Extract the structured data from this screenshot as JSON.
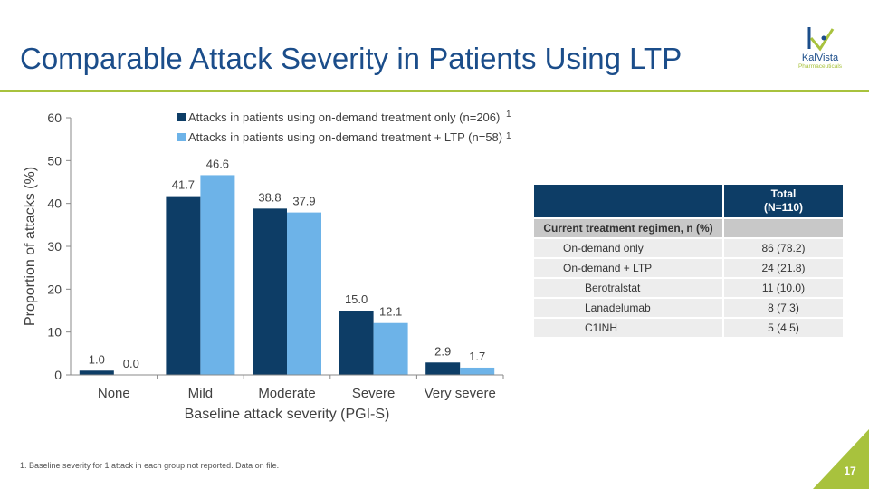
{
  "slide": {
    "title": "Comparable Attack Severity in Patients Using LTP",
    "logo_name": "KalVista",
    "logo_sub": "Pharmaceuticals",
    "footnote": "1. Baseline severity for 1 attack in each group not reported. Data on file.",
    "page_number": "17"
  },
  "colors": {
    "title": "#1b4d8a",
    "accent": "#a8c23d",
    "series1": "#0d3d66",
    "series2": "#6db3e8",
    "table_header": "#0d3d66"
  },
  "chart_data": {
    "type": "bar",
    "title": "",
    "xlabel": "Baseline attack severity (PGI-S)",
    "ylabel": "Proportion of attacks (%)",
    "ylim": [
      0,
      60
    ],
    "yticks": [
      "0",
      "10",
      "20",
      "30",
      "40",
      "50",
      "60"
    ],
    "categories": [
      "None",
      "Mild",
      "Moderate",
      "Severe",
      "Very severe"
    ],
    "legend_position": "top",
    "series": [
      {
        "name": "Attacks in patients using on-demand treatment only (n=206)",
        "superscript": "1",
        "values": [
          1.0,
          41.7,
          38.8,
          15.0,
          2.9
        ],
        "labels": [
          "1.0",
          "41.7",
          "38.8",
          "15.0",
          "2.9"
        ]
      },
      {
        "name": "Attacks in patients using on-demand treatment + LTP (n=58)",
        "superscript": "1",
        "values": [
          0.0,
          46.6,
          37.9,
          12.1,
          1.7
        ],
        "labels": [
          "0.0",
          "46.6",
          "37.9",
          "12.1",
          "1.7"
        ]
      }
    ]
  },
  "table": {
    "header_total_line1": "Total",
    "header_total_line2": "(N=110)",
    "group_label": "Current treatment regimen, n (%)",
    "rows": [
      {
        "label": "On-demand only",
        "value": "86 (78.2)"
      },
      {
        "label": "On-demand + LTP",
        "value": "24 (21.8)"
      },
      {
        "label": "Berotralstat",
        "value": "11 (10.0)"
      },
      {
        "label": "Lanadelumab",
        "value": "8 (7.3)"
      },
      {
        "label": "C1INH",
        "value": "5 (4.5)"
      }
    ]
  }
}
